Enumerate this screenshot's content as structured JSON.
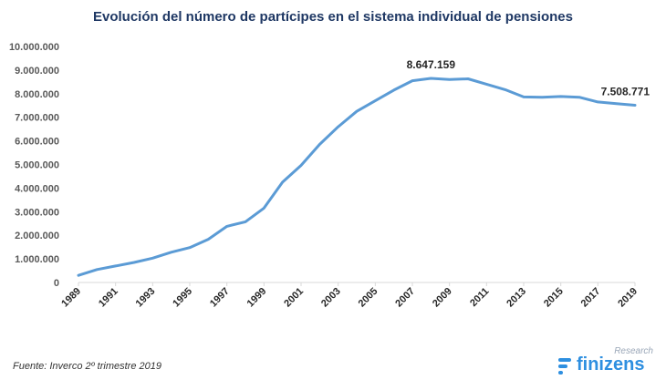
{
  "title": "Evolución  del número de partícipes en el sistema individual  de pensiones",
  "source": "Fuente: Inverco  2º trimestre 2019",
  "logo": {
    "word": "finizens",
    "tag": "Research",
    "icon": "finizens-logo-icon"
  },
  "colors": {
    "line": "#5b9bd5",
    "title": "#1f3864",
    "axis": "#d9d9d9",
    "logo": "#2e8fe0"
  },
  "chart_data": {
    "type": "line",
    "title": "Evolución  del número de partícipes en el sistema individual  de pensiones",
    "xlabel": "",
    "ylabel": "",
    "ylim": [
      0,
      10000000
    ],
    "grid": false,
    "yticks": [
      "0",
      "1.000.000",
      "2.000.000",
      "3.000.000",
      "4.000.000",
      "5.000.000",
      "6.000.000",
      "7.000.000",
      "8.000.000",
      "9.000.000",
      "10.000.000"
    ],
    "xticks": [
      "1989",
      "1991",
      "1993",
      "1995",
      "1997",
      "1999",
      "2001",
      "2003",
      "2005",
      "2007",
      "2009",
      "2011",
      "2013",
      "2015",
      "2017",
      "2019"
    ],
    "x": [
      1989,
      1990,
      1991,
      1992,
      1993,
      1994,
      1995,
      1996,
      1997,
      1998,
      1999,
      2000,
      2001,
      2002,
      2003,
      2004,
      2005,
      2006,
      2007,
      2008,
      2009,
      2010,
      2011,
      2012,
      2013,
      2014,
      2015,
      2016,
      2017,
      2018,
      2019
    ],
    "series": [
      {
        "values": [
          300000,
          550000,
          700000,
          850000,
          1030000,
          1280000,
          1480000,
          1830000,
          2380000,
          2570000,
          3150000,
          4250000,
          4960000,
          5850000,
          6600000,
          7250000,
          7700000,
          8150000,
          8550000,
          8647159,
          8600000,
          8630000,
          8400000,
          8170000,
          7860000,
          7850000,
          7880000,
          7850000,
          7650000,
          7580000,
          7508771
        ]
      }
    ],
    "annotations": [
      {
        "x": 2008,
        "text": "8.647.159"
      },
      {
        "x": 2019,
        "text": "7.508.771"
      }
    ]
  }
}
